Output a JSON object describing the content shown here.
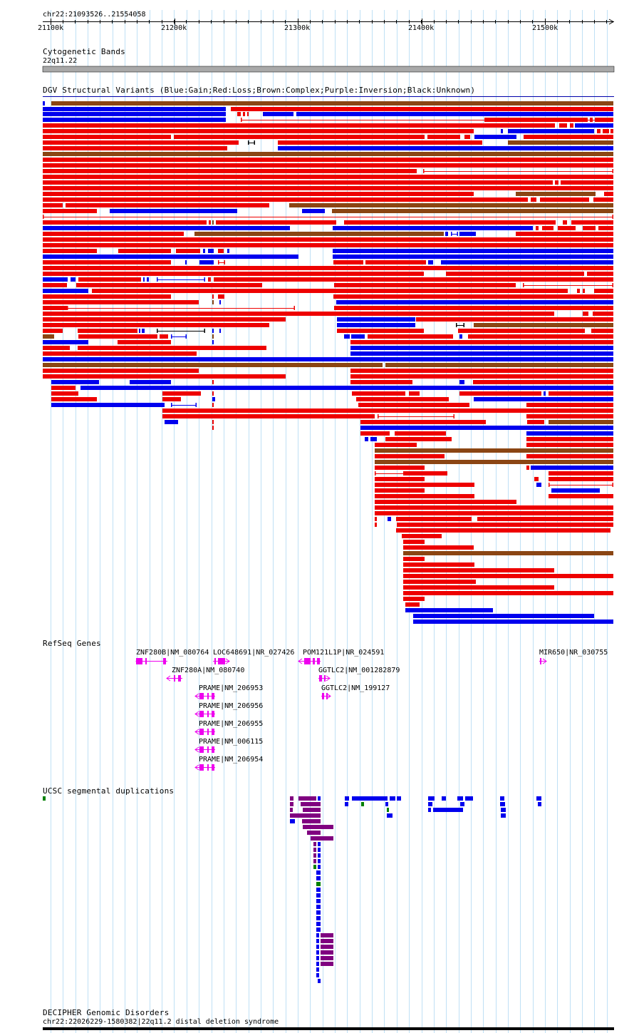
{
  "region": "chr22:21093526..21554058",
  "ruler": {
    "ticks": [
      "21100k",
      "21200k",
      "21300k",
      "21400k",
      "21500k"
    ]
  },
  "tracks": {
    "cytobands": {
      "title": "Cytogenetic Bands",
      "band": "22q11.22"
    },
    "dgv": {
      "title": "DGV Structural Variants (Blue:Gain;Red:Loss;Brown:Complex;Purple:Inversion;Black:Unknown)"
    },
    "refseq": {
      "title": "RefSeq Genes",
      "genes": [
        {
          "label": "ZNF280B|NM_080764",
          "strand": "-"
        },
        {
          "label": "LOC648691|NR_027426",
          "strand": "+"
        },
        {
          "label": "POM121L1P|NR_024591",
          "strand": "-"
        },
        {
          "label": "MIR650|NR_030755",
          "strand": "+"
        },
        {
          "label": "ZNF280A|NM_080740",
          "strand": "-"
        },
        {
          "label": "GGTLC2|NM_001282879",
          "strand": "+"
        },
        {
          "label": "PRAME|NM_206953",
          "strand": "-"
        },
        {
          "label": "GGTLC2|NM_199127",
          "strand": "+"
        },
        {
          "label": "PRAME|NM_206956",
          "strand": "-"
        },
        {
          "label": "PRAME|NM_206955",
          "strand": "-"
        },
        {
          "label": "PRAME|NM_006115",
          "strand": "-"
        },
        {
          "label": "PRAME|NM_206954",
          "strand": "-"
        }
      ]
    },
    "segdups": {
      "title": "UCSC segmental duplications"
    },
    "decipher": {
      "title": "DECIPHER Genomic Disorders",
      "item": "chr22:22026229-1580382|22q11.2 distal deletion syndrome"
    }
  },
  "colors": {
    "gain": "#0000ee",
    "loss": "#ee0000",
    "complex": "#8b4513",
    "gene": "#ee00ee",
    "segdup_purple": "#800080",
    "segdup_blue": "#0000ee",
    "segdup_green": "#008000",
    "grid": "#bfe0f5",
    "cytoband": "#a9a9a9"
  }
}
